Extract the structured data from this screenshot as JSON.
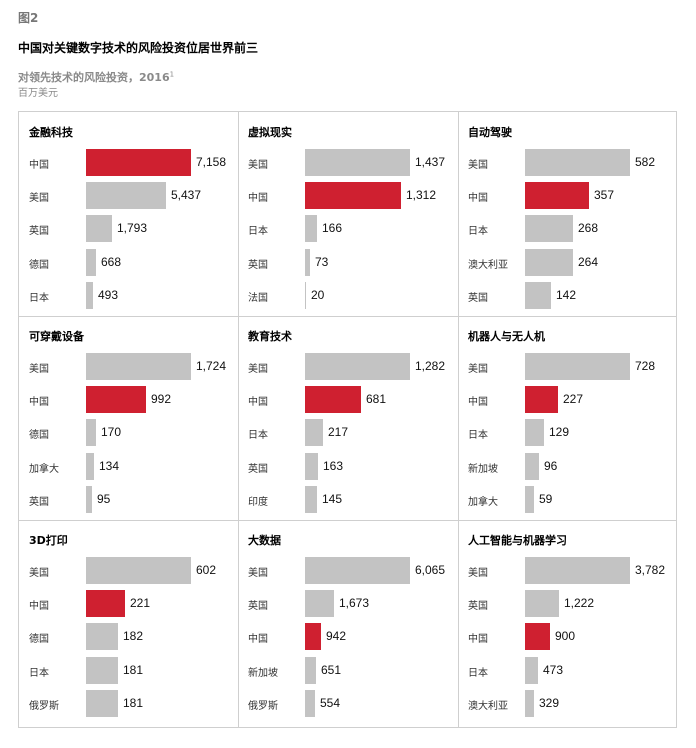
{
  "figure": {
    "label": "图2",
    "title": "中国对关键数字技术的风险投资位居世界前三",
    "subtitle": "对领先技术的风险投资，2016",
    "subtitle_sup": "1",
    "unit": "百万美元"
  },
  "colors": {
    "highlight": "#cf2030",
    "bar": "#c3c3c3",
    "border": "#cfcfcf"
  },
  "chart_data": [
    {
      "type": "bar",
      "title": "金融科技",
      "categories": [
        "中国",
        "美国",
        "英国",
        "德国",
        "日本"
      ],
      "values": [
        7158,
        5437,
        1793,
        668,
        493
      ],
      "labels": [
        "7,158",
        "5,437",
        "1,793",
        "668",
        "493"
      ],
      "highlight": "中国"
    },
    {
      "type": "bar",
      "title": "虚拟现实",
      "categories": [
        "美国",
        "中国",
        "日本",
        "英国",
        "法国"
      ],
      "values": [
        1437,
        1312,
        166,
        73,
        20
      ],
      "labels": [
        "1,437",
        "1,312",
        "166",
        "73",
        "20"
      ],
      "highlight": "中国"
    },
    {
      "type": "bar",
      "title": "自动驾驶",
      "categories": [
        "美国",
        "中国",
        "日本",
        "澳大利亚",
        "英国"
      ],
      "values": [
        582,
        357,
        268,
        264,
        142
      ],
      "labels": [
        "582",
        "357",
        "268",
        "264",
        "142"
      ],
      "highlight": "中国"
    },
    {
      "type": "bar",
      "title": "可穿戴设备",
      "categories": [
        "美国",
        "中国",
        "德国",
        "加拿大",
        "英国"
      ],
      "values": [
        1724,
        992,
        170,
        134,
        95
      ],
      "labels": [
        "1,724",
        "992",
        "170",
        "134",
        "95"
      ],
      "highlight": "中国"
    },
    {
      "type": "bar",
      "title": "教育技术",
      "categories": [
        "美国",
        "中国",
        "日本",
        "英国",
        "印度"
      ],
      "values": [
        1282,
        681,
        217,
        163,
        145
      ],
      "labels": [
        "1,282",
        "681",
        "217",
        "163",
        "145"
      ],
      "highlight": "中国"
    },
    {
      "type": "bar",
      "title": "机器人与无人机",
      "categories": [
        "美国",
        "中国",
        "日本",
        "新加坡",
        "加拿大"
      ],
      "values": [
        728,
        227,
        129,
        96,
        59
      ],
      "labels": [
        "728",
        "227",
        "129",
        "96",
        "59"
      ],
      "highlight": "中国"
    },
    {
      "type": "bar",
      "title": "3D打印",
      "categories": [
        "美国",
        "中国",
        "德国",
        "日本",
        "俄罗斯"
      ],
      "values": [
        602,
        221,
        182,
        181,
        181
      ],
      "labels": [
        "602",
        "221",
        "182",
        "181",
        "181"
      ],
      "highlight": "中国"
    },
    {
      "type": "bar",
      "title": "大数据",
      "categories": [
        "美国",
        "英国",
        "中国",
        "新加坡",
        "俄罗斯"
      ],
      "values": [
        6065,
        1673,
        942,
        651,
        554
      ],
      "labels": [
        "6,065",
        "1,673",
        "942",
        "651",
        "554"
      ],
      "highlight": "中国"
    },
    {
      "type": "bar",
      "title": "人工智能与机器学习",
      "categories": [
        "美国",
        "英国",
        "中国",
        "日本",
        "澳大利亚"
      ],
      "values": [
        3782,
        1222,
        900,
        473,
        329
      ],
      "labels": [
        "3,782",
        "1,222",
        "900",
        "473",
        "329"
      ],
      "highlight": "中国"
    }
  ]
}
